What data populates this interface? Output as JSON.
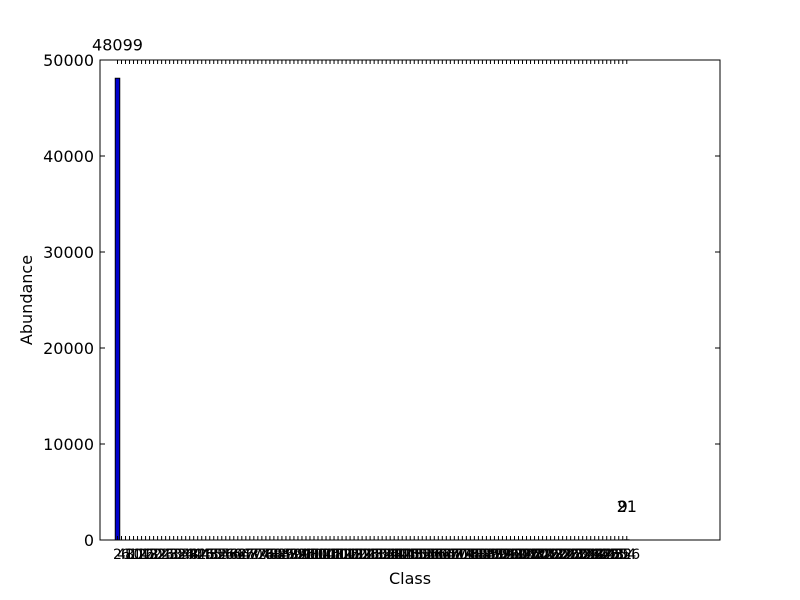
{
  "chart_data": {
    "type": "bar",
    "title": "",
    "xlabel": "Class",
    "ylabel": "Abundance",
    "ylim": [
      0,
      50000
    ],
    "yticks": [
      0,
      10000,
      20000,
      30000,
      40000,
      50000
    ],
    "grid": false,
    "legend": "none",
    "bar_color": "#0000cc",
    "categories": [
      "2",
      "4",
      "6",
      "8",
      "10",
      "12",
      "14",
      "16",
      "18",
      "20",
      "22",
      "24",
      "26",
      "28",
      "30",
      "32",
      "34",
      "36",
      "38",
      "40",
      "42",
      "44",
      "46",
      "48",
      "50",
      "52",
      "54",
      "56",
      "58",
      "60",
      "62",
      "64",
      "66",
      "68",
      "70",
      "72",
      "74",
      "76",
      "78",
      "80",
      "82",
      "84",
      "86",
      "88",
      "90",
      "92",
      "94",
      "96",
      "98",
      "100",
      "102",
      "104",
      "106",
      "108",
      "110",
      "112",
      "114",
      "116",
      "118",
      "120",
      "122",
      "124",
      "126",
      "128",
      "130",
      "132",
      "134",
      "136",
      "138",
      "140",
      "142",
      "144",
      "146",
      "148",
      "150",
      "152",
      "154",
      "156",
      "158",
      "160",
      "162",
      "164",
      "166",
      "168",
      "170",
      "172",
      "174",
      "176",
      "178",
      "180",
      "182",
      "184",
      "186",
      "188",
      "190",
      "192",
      "194",
      "196",
      "198",
      "200",
      "202",
      "204",
      "206",
      "208",
      "210",
      "212",
      "214",
      "216",
      "218",
      "220",
      "222",
      "224",
      "226",
      "228",
      "230",
      "232",
      "234",
      "236",
      "238",
      "240",
      "242",
      "244",
      "246",
      "248",
      "250",
      "252",
      "254",
      "256"
    ],
    "values": [
      48099,
      0,
      0,
      0,
      0,
      0,
      0,
      0,
      0,
      0,
      0,
      0,
      0,
      0,
      0,
      0,
      0,
      0,
      0,
      0,
      0,
      0,
      0,
      0,
      0,
      0,
      0,
      0,
      0,
      0,
      0,
      0,
      0,
      0,
      0,
      0,
      0,
      0,
      0,
      0,
      0,
      0,
      0,
      0,
      0,
      0,
      0,
      0,
      0,
      0,
      0,
      0,
      0,
      0,
      0,
      0,
      0,
      0,
      0,
      0,
      0,
      0,
      0,
      0,
      0,
      0,
      0,
      0,
      0,
      0,
      0,
      0,
      0,
      0,
      0,
      0,
      0,
      0,
      0,
      0,
      0,
      0,
      0,
      0,
      0,
      0,
      0,
      0,
      0,
      0,
      0,
      0,
      0,
      0,
      0,
      0,
      0,
      0,
      0,
      0,
      0,
      0,
      0,
      0,
      0,
      0,
      0,
      0,
      0,
      0,
      0,
      0,
      0,
      0,
      0,
      0,
      0,
      0,
      0,
      0,
      0,
      0,
      0,
      0,
      0,
      0,
      9,
      21
    ],
    "data_labels": [
      {
        "index": 0,
        "text": "48099"
      },
      {
        "index": 126,
        "text": "9"
      },
      {
        "index": 127,
        "text": "21"
      }
    ]
  }
}
